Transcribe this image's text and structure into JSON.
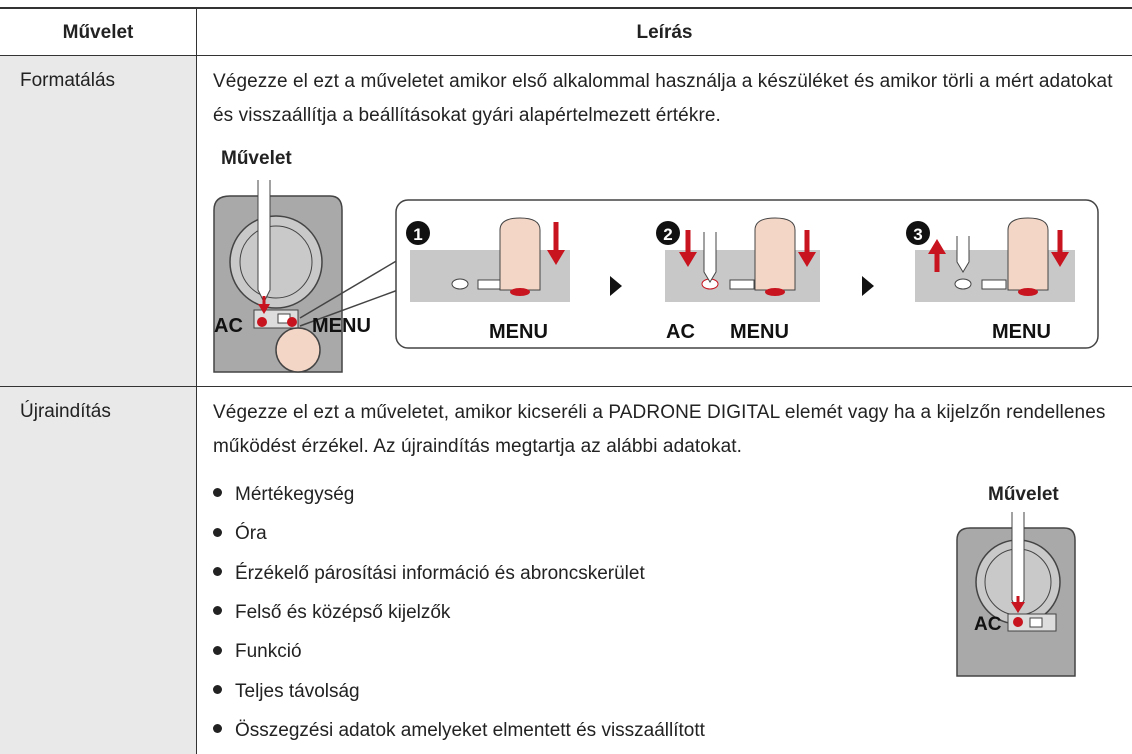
{
  "header": [
    "Művelet",
    "Leírás"
  ],
  "rows": [
    {
      "name": "Formatálás",
      "description": "Végezze el ezt a műveletet amikor első alkalommal használja a készüléket és amikor törli a mért adatokat és visszaállítja a beállításokat gyári alapértelmezett értékre.",
      "operation_label": "Művelet",
      "device_labels": [
        "AC",
        "MENU"
      ],
      "steps": [
        {
          "number": "1",
          "labels": [
            "MENU"
          ]
        },
        {
          "number": "2",
          "labels": [
            "AC",
            "MENU"
          ]
        },
        {
          "number": "3",
          "labels": [
            "MENU"
          ]
        }
      ]
    },
    {
      "name": "Újraindítás",
      "description": "Végezze el ezt a műveletet, amikor kicseréli a PADRONE DIGITAL elemét vagy ha a kijelzőn rendellenes működést érzékel. Az újraindítás megtartja az alábbi adatokat.",
      "items": [
        "Mértékegység",
        "Óra",
        "Érzékelő párosítási információ és abroncskerület",
        "Felső és középső kijelzők",
        "Funkció",
        "Teljes távolság",
        "Összegzési adatok amelyeket elmentett és visszaállított"
      ],
      "operation_label": "Művelet",
      "device_labels": [
        "AC"
      ]
    }
  ]
}
